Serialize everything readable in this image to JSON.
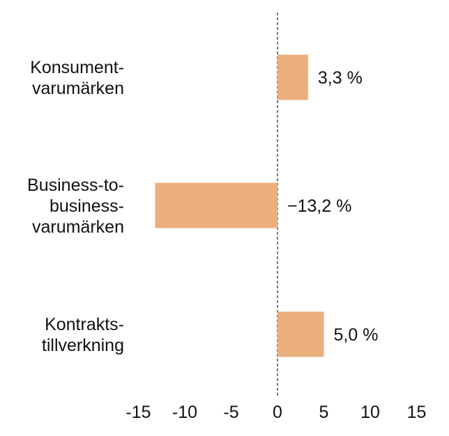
{
  "chart_data": {
    "type": "bar",
    "orientation": "horizontal",
    "categories": [
      [
        "Konsument-",
        "varumärken"
      ],
      [
        "Business-to-",
        "business-",
        "varumärken"
      ],
      [
        "Kontrakts-",
        "tillverkning"
      ]
    ],
    "values": [
      3.3,
      -13.2,
      5.0
    ],
    "value_labels": [
      "3,3 %",
      "−13,2 %",
      "5,0 %"
    ],
    "xlim": [
      -15,
      15
    ],
    "xticks": [
      -15,
      -10,
      -5,
      0,
      5,
      10,
      15
    ],
    "xtick_labels": [
      "-15",
      "-10",
      "-5",
      "0",
      "5",
      "10",
      "15"
    ],
    "bar_color": "#EBAF7D",
    "zero_line": "dashed",
    "grid": false,
    "legend": "none"
  }
}
